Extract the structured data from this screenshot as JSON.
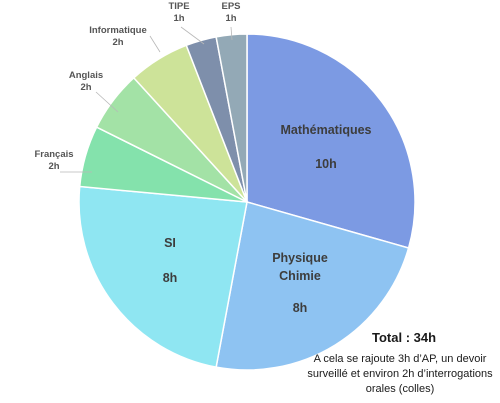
{
  "chart_data": {
    "type": "pie",
    "unit": "h",
    "slices": [
      {
        "label": [
          "Mathématiques"
        ],
        "value": 10,
        "value_label": "10h",
        "color": "#7c9ae3",
        "inside": true
      },
      {
        "label": [
          "Physique",
          "Chimie"
        ],
        "value": 8,
        "value_label": "8h",
        "color": "#8ec3f2",
        "inside": true
      },
      {
        "label": [
          "SI"
        ],
        "value": 8,
        "value_label": "8h",
        "color": "#8fe6f2",
        "inside": true
      },
      {
        "label": [
          "Français"
        ],
        "value": 2,
        "value_label": "2h",
        "color": "#84e2ac",
        "inside": false
      },
      {
        "label": [
          "Anglais"
        ],
        "value": 2,
        "value_label": "2h",
        "color": "#a3e2a6",
        "inside": false
      },
      {
        "label": [
          "Informatique"
        ],
        "value": 2,
        "value_label": "2h",
        "color": "#cde399",
        "inside": false
      },
      {
        "label": [
          "TIPE"
        ],
        "value": 1,
        "value_label": "1h",
        "color": "#7e8fab",
        "inside": false
      },
      {
        "label": [
          "EPS"
        ],
        "value": 1,
        "value_label": "1h",
        "color": "#93a9b6",
        "inside": false
      }
    ],
    "legend": "none"
  },
  "annotations": {
    "total": "Total : 34h",
    "note": "A cela se rajoute 3h d’AP, un devoir surveillé et environ 2h d’interrogations orales (colles)"
  }
}
